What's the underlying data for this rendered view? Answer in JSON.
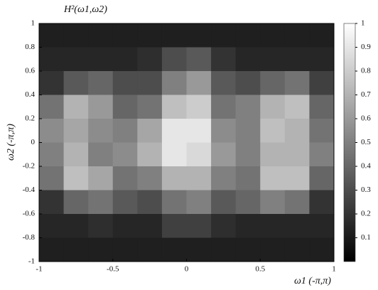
{
  "chart_data": {
    "type": "heatmap",
    "title": "H²(ω1,ω2)",
    "x_label": "ω1 (-π,π)",
    "y_label": "ω2 (-π,π)",
    "xlim": [
      -1,
      1
    ],
    "ylim": [
      -1,
      1
    ],
    "xticks": [
      -1,
      -0.5,
      0,
      0.5,
      1
    ],
    "yticks": [
      -1,
      -0.8,
      -0.6,
      -0.4,
      -0.2,
      0,
      0.2,
      0.4,
      0.6,
      0.8,
      1
    ],
    "colormap": "gray",
    "clim": [
      0,
      1
    ],
    "cticks": [
      0.1,
      0.2,
      0.3,
      0.4,
      0.5,
      0.6,
      0.7,
      0.8,
      0.9,
      1
    ],
    "z": [
      [
        0.12,
        0.12,
        0.12,
        0.12,
        0.12,
        0.12,
        0.12,
        0.12,
        0.12,
        0.12,
        0.12,
        0.12
      ],
      [
        0.15,
        0.15,
        0.15,
        0.15,
        0.18,
        0.3,
        0.35,
        0.2,
        0.15,
        0.15,
        0.15,
        0.15
      ],
      [
        0.2,
        0.35,
        0.4,
        0.3,
        0.3,
        0.5,
        0.6,
        0.35,
        0.3,
        0.4,
        0.45,
        0.25
      ],
      [
        0.45,
        0.7,
        0.6,
        0.4,
        0.45,
        0.75,
        0.8,
        0.45,
        0.5,
        0.7,
        0.75,
        0.4
      ],
      [
        0.55,
        0.65,
        0.55,
        0.5,
        0.65,
        0.9,
        0.9,
        0.55,
        0.5,
        0.75,
        0.7,
        0.45
      ],
      [
        0.5,
        0.7,
        0.5,
        0.55,
        0.7,
        0.9,
        0.85,
        0.6,
        0.5,
        0.7,
        0.7,
        0.5
      ],
      [
        0.45,
        0.75,
        0.65,
        0.45,
        0.5,
        0.7,
        0.7,
        0.5,
        0.45,
        0.75,
        0.75,
        0.4
      ],
      [
        0.2,
        0.4,
        0.45,
        0.35,
        0.3,
        0.45,
        0.5,
        0.35,
        0.4,
        0.5,
        0.45,
        0.2
      ],
      [
        0.15,
        0.15,
        0.18,
        0.15,
        0.15,
        0.25,
        0.25,
        0.18,
        0.15,
        0.15,
        0.15,
        0.15
      ],
      [
        0.12,
        0.12,
        0.12,
        0.12,
        0.12,
        0.12,
        0.12,
        0.12,
        0.12,
        0.12,
        0.12,
        0.12
      ]
    ]
  }
}
